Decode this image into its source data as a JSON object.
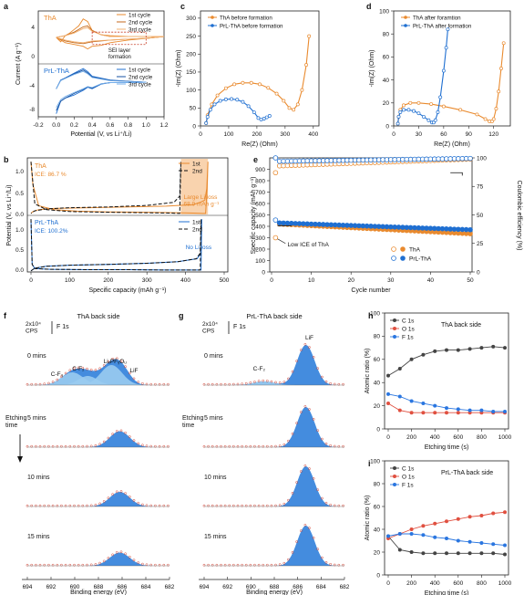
{
  "colors": {
    "tha": "#E98A2E",
    "prl": "#1F6FD1",
    "grey": "#444444",
    "red": "#E05040",
    "blue": "#2A76E0",
    "fill": "#3A86DC",
    "fillLight": "#9ACBEF"
  },
  "chart_data": [
    {
      "id": "a",
      "letter": "a",
      "type": "line",
      "xlabel": "Potential (V, vs Li⁺/Li)",
      "ylabel": "Current (A g⁻¹)",
      "xlim": [
        -0.2,
        1.2
      ],
      "xticks": [
        "-0.2",
        "0.0",
        "0.2",
        "0.4",
        "0.6",
        "0.8",
        "1.0",
        "1.2"
      ],
      "yticks": [
        "-8",
        "-4",
        "0",
        "4"
      ],
      "top": {
        "label": "ThA",
        "annotation": "SEI layer\nformation",
        "series": [
          {
            "name": "1st cycle",
            "x": [
              0.0,
              0.05,
              0.1,
              0.15,
              0.2,
              0.25,
              0.3,
              0.35,
              0.4,
              0.5,
              0.6,
              0.8,
              1.0,
              1.2,
              1.0,
              0.8,
              0.6,
              0.5,
              0.4,
              0.35,
              0.3,
              0.2,
              0.1,
              0.0
            ],
            "y": [
              0,
              -0.5,
              0.2,
              0.5,
              0.9,
              1.3,
              2.1,
              1.8,
              0.8,
              0.3,
              0.2,
              0.1,
              0.1,
              0.1,
              -0.1,
              -0.3,
              -0.6,
              -0.9,
              -1.0,
              -1.3,
              -1.0,
              -0.8,
              -0.6,
              0
            ]
          },
          {
            "name": "2nd cycle",
            "x": [
              0.0,
              0.1,
              0.2,
              0.3,
              0.35,
              0.4,
              0.5,
              0.6,
              0.8,
              1.0,
              1.2,
              1.0,
              0.8,
              0.6,
              0.4,
              0.3,
              0.2,
              0.1,
              0.0
            ],
            "y": [
              0,
              0.2,
              0.6,
              1.2,
              1.3,
              0.8,
              0.3,
              0.1,
              0.1,
              0.1,
              0.1,
              -0.1,
              -0.2,
              -0.3,
              -0.5,
              -0.7,
              -0.6,
              -0.4,
              0
            ]
          },
          {
            "name": "3rd cycle",
            "x": [
              0.0,
              0.1,
              0.2,
              0.3,
              0.35,
              0.4,
              0.5,
              0.6,
              0.8,
              1.0,
              1.2,
              1.0,
              0.8,
              0.6,
              0.4,
              0.3,
              0.2,
              0.1,
              0.0
            ],
            "y": [
              0,
              0.2,
              0.5,
              1.0,
              1.1,
              0.7,
              0.3,
              0.1,
              0.1,
              0.1,
              0.1,
              -0.1,
              -0.2,
              -0.3,
              -0.4,
              -0.6,
              -0.5,
              -0.3,
              0
            ]
          }
        ]
      },
      "bottom": {
        "label": "PrL-ThA",
        "series": [
          {
            "name": "1st cycle",
            "x": [
              0.0,
              0.05,
              0.1,
              0.2,
              0.3,
              0.35,
              0.4,
              0.5,
              0.6,
              0.8,
              1.0,
              0.8,
              0.6,
              0.4,
              0.35,
              0.3,
              0.2,
              0.1,
              0.05,
              0.0
            ],
            "y": [
              -10,
              -6,
              -5,
              -4,
              -2.5,
              -1.5,
              -2,
              -0.5,
              0,
              0,
              0.1,
              0.4,
              0.8,
              2.0,
              3.5,
              4.5,
              3,
              1.5,
              0.8,
              -2
            ]
          },
          {
            "name": "2nd cycle",
            "x": [
              0.0,
              0.05,
              0.1,
              0.2,
              0.3,
              0.35,
              0.4,
              0.5,
              0.6,
              0.8,
              1.0,
              0.8,
              0.6,
              0.4,
              0.35,
              0.3,
              0.2,
              0.1,
              0.05,
              0.0
            ],
            "y": [
              -9,
              -6,
              -5,
              -3.5,
              -2.2,
              -1.4,
              -1.8,
              -0.4,
              0,
              0,
              0.1,
              0.4,
              0.7,
              1.8,
              3.1,
              4.0,
              2.8,
              1.4,
              0.7,
              -2
            ]
          },
          {
            "name": "3rd cycle",
            "x": [
              0.0,
              0.05,
              0.1,
              0.2,
              0.3,
              0.35,
              0.4,
              0.5,
              0.6,
              0.8,
              1.0,
              0.8,
              0.6,
              0.4,
              0.35,
              0.3,
              0.2,
              0.1,
              0.05,
              0.0
            ],
            "y": [
              -8,
              -5.5,
              -4.5,
              -3.2,
              -2.0,
              -1.3,
              -1.6,
              -0.4,
              0,
              0,
              0.1,
              0.3,
              0.6,
              1.6,
              2.8,
              3.6,
              2.6,
              1.3,
              0.6,
              -2
            ]
          }
        ]
      }
    },
    {
      "id": "b",
      "letter": "b",
      "type": "line",
      "xlabel": "Specific capacity (mAh g⁻¹)",
      "ylabel": "Potential (V, vs Li⁺/Li)",
      "xlim": [
        0,
        500
      ],
      "xticks": [
        "0",
        "100",
        "200",
        "300",
        "400",
        "500"
      ],
      "top": {
        "label": "ThA",
        "ice": "ICE: 86.7 %",
        "loss": "Large Li loss\n68.9 mAh g⁻¹",
        "series": [
          {
            "name": "1st",
            "x": [
              0,
              5,
              20,
              60,
              120,
              200,
              300,
              380,
              420,
              445,
              452,
              456,
              458,
              455,
              450,
              440,
              420,
              350,
              250,
              150,
              60,
              20,
              5,
              0
            ],
            "y": [
              1.4,
              0.8,
              0.25,
              0.15,
              0.11,
              0.09,
              0.08,
              0.07,
              0.06,
              0.05,
              0.05,
              0.7,
              1.4,
              0.7,
              0.4,
              0.35,
              0.28,
              0.24,
              0.22,
              0.2,
              0.18,
              0.15,
              0.1,
              0.05
            ]
          },
          {
            "name": "2nd",
            "x": [
              0,
              10,
              40,
              100,
              200,
              300,
              360,
              385,
              388,
              385,
              370,
              300,
              200,
              100,
              40,
              10,
              0
            ],
            "y": [
              1.4,
              0.3,
              0.15,
              0.1,
              0.08,
              0.07,
              0.06,
              0.05,
              1.4,
              0.5,
              0.34,
              0.26,
              0.22,
              0.2,
              0.17,
              0.12,
              0.05
            ]
          }
        ]
      },
      "bottom": {
        "label": "PrL-ThA",
        "ice": "ICE: 100.2%",
        "loss": "No Li loss",
        "series": [
          {
            "name": "1st",
            "x": [
              0,
              3,
              10,
              50,
              150,
              250,
              350,
              420,
              440,
              442,
              440,
              430,
              380,
              300,
              200,
              100,
              40,
              10,
              3,
              0
            ],
            "y": [
              1.4,
              0.2,
              0.09,
              0.07,
              0.06,
              0.06,
              0.05,
              0.05,
              0.05,
              1.4,
              0.5,
              0.35,
              0.27,
              0.23,
              0.2,
              0.18,
              0.15,
              0.1,
              0.05,
              0.03
            ]
          },
          {
            "name": "2nd",
            "x": [
              0,
              3,
              10,
              50,
              150,
              250,
              350,
              420,
              438,
              440,
              438,
              428,
              380,
              300,
              200,
              100,
              40,
              10,
              3,
              0
            ],
            "y": [
              1.4,
              0.2,
              0.09,
              0.07,
              0.06,
              0.06,
              0.05,
              0.05,
              0.05,
              1.4,
              0.5,
              0.35,
              0.27,
              0.23,
              0.2,
              0.18,
              0.15,
              0.1,
              0.05,
              0.03
            ]
          }
        ]
      }
    },
    {
      "id": "c",
      "letter": "c",
      "type": "line",
      "xlabel": "Re(Z) (Ohm)",
      "ylabel": "-Im(Z) (Ohm)",
      "xlim": [
        0,
        420
      ],
      "ylim": [
        0,
        320
      ],
      "xticks": [
        0,
        100,
        200,
        300,
        400
      ],
      "yticks": [
        0,
        50,
        100,
        150,
        200,
        250,
        300
      ],
      "series": [
        {
          "name": "ThA before formation",
          "x": [
            20,
            25,
            40,
            60,
            90,
            120,
            150,
            180,
            210,
            240,
            270,
            295,
            315,
            330,
            345,
            360,
            375,
            385
          ],
          "y": [
            8,
            30,
            60,
            85,
            105,
            116,
            120,
            120,
            116,
            106,
            90,
            70,
            50,
            45,
            60,
            100,
            170,
            250
          ]
        },
        {
          "name": "PrL-ThA before formation",
          "x": [
            20,
            25,
            35,
            50,
            70,
            90,
            110,
            130,
            150,
            170,
            190,
            205,
            215,
            225,
            235,
            245
          ],
          "y": [
            8,
            25,
            45,
            60,
            70,
            74,
            75,
            73,
            67,
            55,
            38,
            22,
            18,
            20,
            24,
            28
          ]
        }
      ]
    },
    {
      "id": "d",
      "letter": "d",
      "type": "line",
      "xlabel": "Re(Z) (Ohm)",
      "ylabel": "-Im(Z) (Ohm)",
      "xlim": [
        0,
        140
      ],
      "ylim": [
        0,
        100
      ],
      "xticks": [
        0,
        30,
        60,
        90,
        120
      ],
      "yticks": [
        0,
        20,
        40,
        60,
        80,
        100
      ],
      "series": [
        {
          "name": "ThA after foramtion",
          "x": [
            5,
            6,
            8,
            12,
            20,
            30,
            45,
            60,
            80,
            100,
            110,
            115,
            118,
            120,
            123,
            126,
            129,
            132
          ],
          "y": [
            2,
            8,
            14,
            18,
            20,
            20,
            19,
            17,
            14,
            10,
            6,
            4,
            4,
            6,
            15,
            30,
            50,
            72
          ]
        },
        {
          "name": "PrL-ThA after formation",
          "x": [
            5,
            6,
            8,
            12,
            18,
            24,
            30,
            36,
            42,
            46,
            48,
            50,
            53,
            56,
            60,
            63,
            65
          ],
          "y": [
            2,
            8,
            12,
            14,
            14,
            13,
            11,
            8,
            5,
            3,
            3,
            5,
            12,
            25,
            48,
            68,
            84
          ]
        }
      ]
    },
    {
      "id": "e",
      "letter": "e",
      "type": "scatter",
      "xlabel": "Cycle number",
      "ylabel": "Specific capacity (mAh g⁻¹)",
      "y2label": "Coulombic efficiency (%)",
      "xlim": [
        0,
        50
      ],
      "ylim": [
        0,
        1000
      ],
      "y2lim": [
        0,
        100
      ],
      "xticks": [
        0,
        10,
        20,
        30,
        40,
        50
      ],
      "yticks": [
        0,
        100,
        200,
        300,
        400,
        500,
        600,
        700,
        800,
        900
      ],
      "y2ticks": [
        0,
        25,
        50,
        75,
        100
      ],
      "annotation": "Low ICE of ThA",
      "series": [
        {
          "name": "ThA",
          "kind": "capacity",
          "first": 300,
          "start": 420,
          "end": 335
        },
        {
          "name": "PrL-ThA",
          "kind": "capacity",
          "first": 455,
          "start": 430,
          "end": 370
        },
        {
          "name": "ThA",
          "kind": "ce",
          "first": 87,
          "start": 93,
          "end": 99
        },
        {
          "name": "PrL-ThA",
          "kind": "ce",
          "first": 100,
          "start": 97,
          "end": 99.5
        }
      ],
      "legend": [
        "ThA",
        "PrL-ThA"
      ]
    },
    {
      "id": "f",
      "letter": "f",
      "type": "area",
      "title": "ThA back side",
      "xlabel": "Binding energy (eV)",
      "scale": "2x10⁴\nCPS",
      "scale_label": "F 1s",
      "xticks": [
        "694",
        "692",
        "690",
        "688",
        "686",
        "684",
        "682"
      ],
      "peaks_labels": [
        "C-F₃",
        "C-F₂",
        "LiₓPFᵧOᵤ",
        "LiF"
      ],
      "times": [
        "0 mins",
        "5 mins",
        "10 mins",
        "15 mins"
      ],
      "side_label": "Etching\ntime"
    },
    {
      "id": "g",
      "letter": "g",
      "type": "area",
      "title": "PrL-ThA back side",
      "xlabel": "Binding energy (eV)",
      "scale": "2x10⁴\nCPS",
      "scale_label": "F 1s",
      "xticks": [
        "694",
        "692",
        "690",
        "688",
        "686",
        "684",
        "682"
      ],
      "peaks_labels": [
        "C-F₂",
        "LiF"
      ],
      "times": [
        "0 mins",
        "5 mins",
        "10 mins",
        "15 mins"
      ],
      "side_label": "Etching\ntime"
    },
    {
      "id": "h",
      "letter": "h",
      "type": "line",
      "title": "ThA back side",
      "xlabel": "Etching time (s)",
      "ylabel": "Atomic ratio (%)",
      "xlim": [
        0,
        1000
      ],
      "ylim": [
        0,
        100
      ],
      "xticks": [
        0,
        200,
        400,
        600,
        800,
        1000
      ],
      "yticks": [
        0,
        20,
        40,
        60,
        80,
        100
      ],
      "x": [
        0,
        100,
        200,
        300,
        400,
        500,
        600,
        700,
        800,
        900,
        1000
      ],
      "series": [
        {
          "name": "C 1s",
          "values": [
            46,
            52,
            60,
            64,
            67,
            68,
            68,
            69,
            70,
            71,
            70
          ]
        },
        {
          "name": "O 1s",
          "values": [
            22,
            16,
            14,
            14,
            14,
            14,
            14,
            14,
            14,
            14,
            14
          ]
        },
        {
          "name": "F 1s",
          "values": [
            30,
            28,
            24,
            22,
            20,
            18,
            17,
            16,
            16,
            15,
            15
          ]
        }
      ]
    },
    {
      "id": "i",
      "letter": "i",
      "type": "line",
      "title": "PrL-ThA back side",
      "xlabel": "Etching time (s)",
      "ylabel": "Atomic ratio (%)",
      "xlim": [
        0,
        1000
      ],
      "ylim": [
        0,
        100
      ],
      "xticks": [
        0,
        200,
        400,
        600,
        800,
        1000
      ],
      "yticks": [
        0,
        20,
        40,
        60,
        80,
        100
      ],
      "x": [
        0,
        100,
        200,
        300,
        400,
        500,
        600,
        700,
        800,
        900,
        1000
      ],
      "series": [
        {
          "name": "C 1s",
          "values": [
            34,
            22,
            20,
            19,
            19,
            19,
            19,
            19,
            19,
            19,
            18
          ]
        },
        {
          "name": "O 1s",
          "values": [
            32,
            36,
            40,
            43,
            45,
            47,
            49,
            51,
            52,
            54,
            55
          ]
        },
        {
          "name": "F 1s",
          "values": [
            34,
            36,
            36,
            35,
            33,
            32,
            30,
            29,
            28,
            27,
            26
          ]
        }
      ]
    }
  ]
}
